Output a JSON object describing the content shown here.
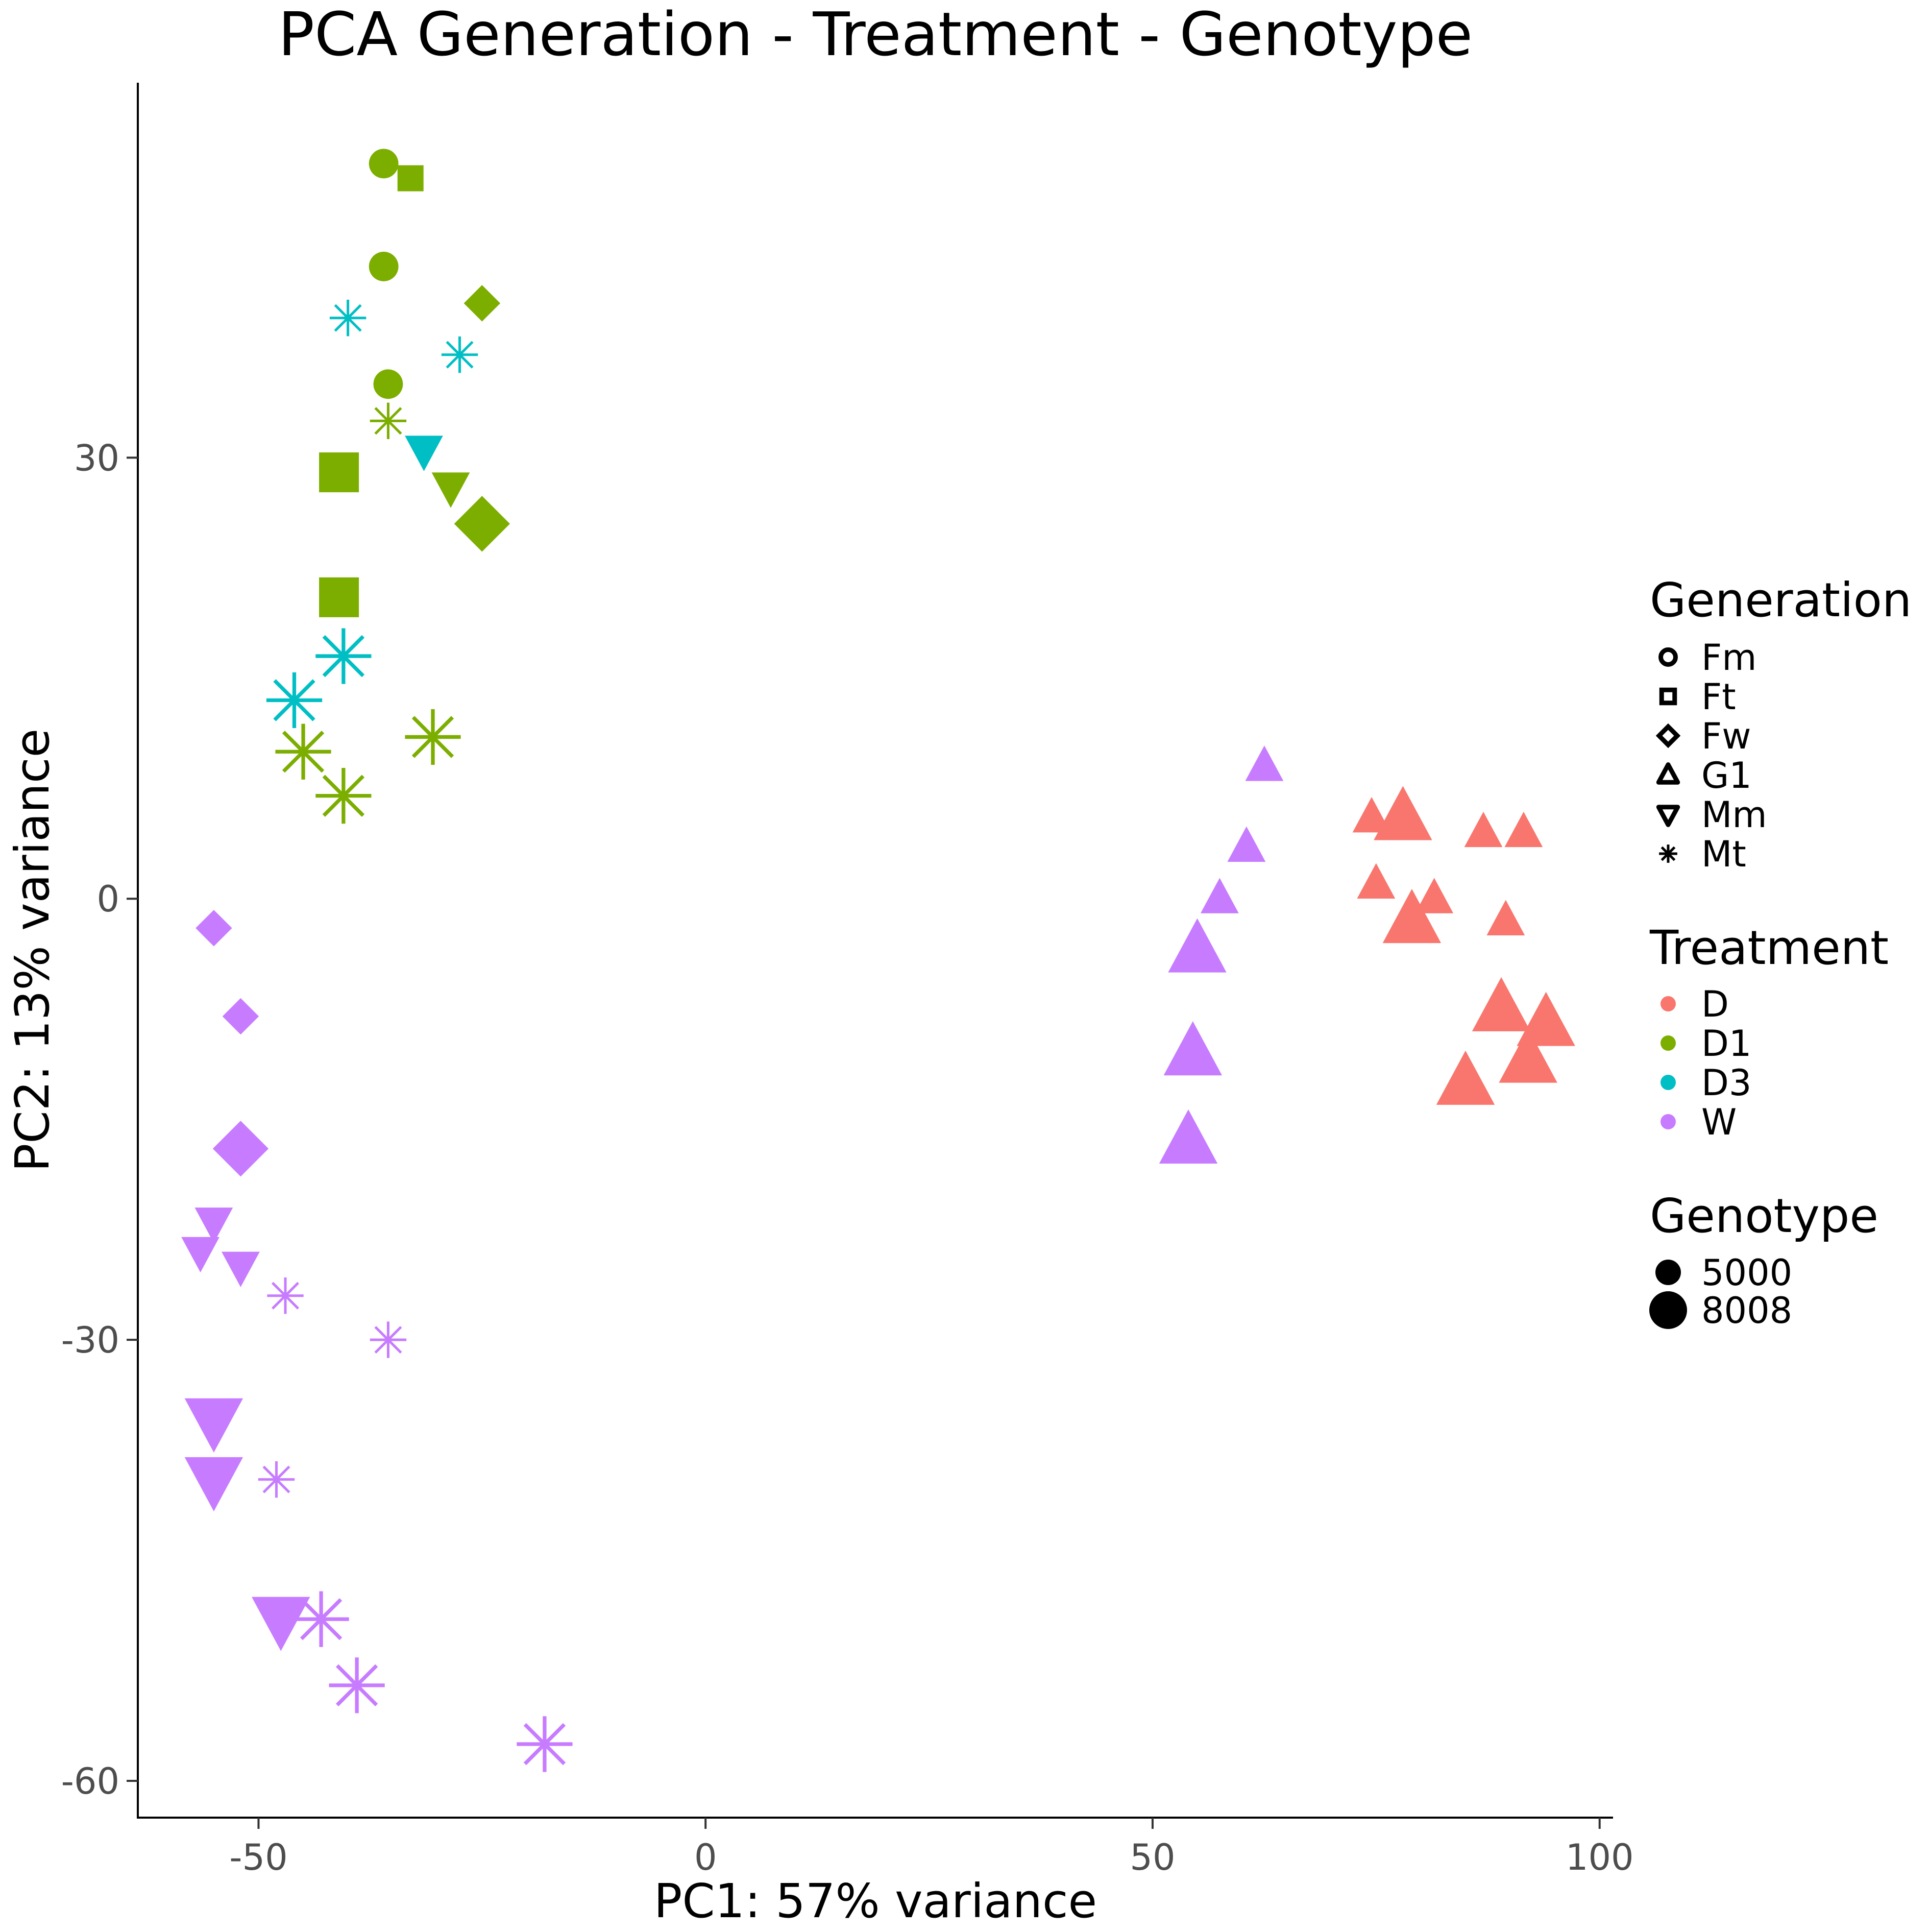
{
  "chart_data": {
    "type": "scatter",
    "title": "PCA Generation - Treatment - Genotype",
    "xlabel": "PC1: 57% variance",
    "ylabel": "PC2: 13% variance",
    "xlim": [
      -63.5,
      101.5
    ],
    "ylim": [
      -62.5,
      55.5
    ],
    "xticks": [
      -50,
      0,
      50,
      100
    ],
    "yticks": [
      30,
      0,
      -30,
      -60
    ],
    "xtick_labels": [
      "-50",
      "0",
      "50",
      "100"
    ],
    "ytick_labels": [
      "30",
      "0",
      "-30",
      "-60"
    ],
    "grid": false,
    "legend_position": "right",
    "treatment_colors": {
      "D": "#F8766D",
      "D1": "#7CAE00",
      "D3": "#00BFC4",
      "W": "#C77CFF"
    },
    "legends": {
      "generation": {
        "title": "Generation",
        "entries": [
          "Fm",
          "Ft",
          "Fw",
          "G1",
          "Mm",
          "Mt"
        ],
        "shapes": [
          "circle",
          "square",
          "diamond",
          "triangle-up",
          "triangle-down",
          "asterisk"
        ]
      },
      "treatment": {
        "title": "Treatment",
        "entries": [
          "D",
          "D1",
          "D3",
          "W"
        ]
      },
      "genotype": {
        "title": "Genotype",
        "entries": [
          "5000",
          "8008"
        ]
      }
    },
    "points": [
      {
        "x": -36.0,
        "y": 50.0,
        "generation": "Fm",
        "treatment": "D1",
        "genotype": "5000"
      },
      {
        "x": -33.0,
        "y": 49.0,
        "generation": "Ft",
        "treatment": "D1",
        "genotype": "5000"
      },
      {
        "x": -36.0,
        "y": 43.0,
        "generation": "Fm",
        "treatment": "D1",
        "genotype": "5000"
      },
      {
        "x": -25.0,
        "y": 40.5,
        "generation": "Fw",
        "treatment": "D1",
        "genotype": "5000"
      },
      {
        "x": -40.0,
        "y": 39.5,
        "generation": "Mt",
        "treatment": "D3",
        "genotype": "5000"
      },
      {
        "x": -27.5,
        "y": 37.0,
        "generation": "Mt",
        "treatment": "D3",
        "genotype": "5000"
      },
      {
        "x": -35.5,
        "y": 35.0,
        "generation": "Fm",
        "treatment": "D1",
        "genotype": "5000"
      },
      {
        "x": -35.5,
        "y": 32.5,
        "generation": "Mt",
        "treatment": "D1",
        "genotype": "5000"
      },
      {
        "x": -31.5,
        "y": 30.5,
        "generation": "Mm",
        "treatment": "D3",
        "genotype": "5000"
      },
      {
        "x": -41.0,
        "y": 29.0,
        "generation": "Ft",
        "treatment": "D1",
        "genotype": "8008"
      },
      {
        "x": -28.5,
        "y": 28.0,
        "generation": "Mm",
        "treatment": "D1",
        "genotype": "5000"
      },
      {
        "x": -25.0,
        "y": 25.5,
        "generation": "Fw",
        "treatment": "D1",
        "genotype": "8008"
      },
      {
        "x": -41.0,
        "y": 20.5,
        "generation": "Ft",
        "treatment": "D1",
        "genotype": "8008"
      },
      {
        "x": -40.5,
        "y": 16.5,
        "generation": "Mt",
        "treatment": "D3",
        "genotype": "8008"
      },
      {
        "x": -46.0,
        "y": 13.5,
        "generation": "Mt",
        "treatment": "D3",
        "genotype": "8008"
      },
      {
        "x": -45.0,
        "y": 10.0,
        "generation": "Mt",
        "treatment": "D1",
        "genotype": "8008"
      },
      {
        "x": -30.5,
        "y": 11.0,
        "generation": "Mt",
        "treatment": "D1",
        "genotype": "8008"
      },
      {
        "x": -40.5,
        "y": 7.0,
        "generation": "Mt",
        "treatment": "D1",
        "genotype": "8008"
      },
      {
        "x": 62.5,
        "y": 9.0,
        "generation": "G1",
        "treatment": "W",
        "genotype": "5000"
      },
      {
        "x": 74.5,
        "y": 5.5,
        "generation": "G1",
        "treatment": "D",
        "genotype": "5000"
      },
      {
        "x": 78.0,
        "y": 5.5,
        "generation": "G1",
        "treatment": "D",
        "genotype": "8008"
      },
      {
        "x": 87.0,
        "y": 4.5,
        "generation": "G1",
        "treatment": "D",
        "genotype": "5000"
      },
      {
        "x": 91.5,
        "y": 4.5,
        "generation": "G1",
        "treatment": "D",
        "genotype": "5000"
      },
      {
        "x": 60.5,
        "y": 3.5,
        "generation": "G1",
        "treatment": "W",
        "genotype": "5000"
      },
      {
        "x": 75.0,
        "y": 1.0,
        "generation": "G1",
        "treatment": "D",
        "genotype": "5000"
      },
      {
        "x": 81.5,
        "y": 0.0,
        "generation": "G1",
        "treatment": "D",
        "genotype": "5000"
      },
      {
        "x": 57.5,
        "y": 0.0,
        "generation": "G1",
        "treatment": "W",
        "genotype": "5000"
      },
      {
        "x": 79.0,
        "y": -1.5,
        "generation": "G1",
        "treatment": "D",
        "genotype": "8008"
      },
      {
        "x": 89.5,
        "y": -1.5,
        "generation": "G1",
        "treatment": "D",
        "genotype": "5000"
      },
      {
        "x": 55.0,
        "y": -3.5,
        "generation": "G1",
        "treatment": "W",
        "genotype": "8008"
      },
      {
        "x": 89.0,
        "y": -7.5,
        "generation": "G1",
        "treatment": "D",
        "genotype": "8008"
      },
      {
        "x": 94.0,
        "y": -8.5,
        "generation": "G1",
        "treatment": "D",
        "genotype": "8008"
      },
      {
        "x": 54.5,
        "y": -10.5,
        "generation": "G1",
        "treatment": "W",
        "genotype": "8008"
      },
      {
        "x": 92.0,
        "y": -11.0,
        "generation": "G1",
        "treatment": "D",
        "genotype": "8008"
      },
      {
        "x": 85.0,
        "y": -12.5,
        "generation": "G1",
        "treatment": "D",
        "genotype": "8008"
      },
      {
        "x": 54.0,
        "y": -16.5,
        "generation": "G1",
        "treatment": "W",
        "genotype": "8008"
      },
      {
        "x": -55.0,
        "y": -2.0,
        "generation": "Fw",
        "treatment": "W",
        "genotype": "5000"
      },
      {
        "x": -52.0,
        "y": -8.0,
        "generation": "Fw",
        "treatment": "W",
        "genotype": "5000"
      },
      {
        "x": -52.0,
        "y": -17.0,
        "generation": "Fw",
        "treatment": "W",
        "genotype": "8008"
      },
      {
        "x": -55.0,
        "y": -22.0,
        "generation": "Mm",
        "treatment": "W",
        "genotype": "5000"
      },
      {
        "x": -56.5,
        "y": -24.0,
        "generation": "Mm",
        "treatment": "W",
        "genotype": "5000"
      },
      {
        "x": -52.0,
        "y": -25.0,
        "generation": "Mm",
        "treatment": "W",
        "genotype": "5000"
      },
      {
        "x": -47.0,
        "y": -27.0,
        "generation": "Mt",
        "treatment": "W",
        "genotype": "5000"
      },
      {
        "x": -35.5,
        "y": -30.0,
        "generation": "Mt",
        "treatment": "W",
        "genotype": "5000"
      },
      {
        "x": -55.0,
        "y": -35.5,
        "generation": "Mm",
        "treatment": "W",
        "genotype": "8008"
      },
      {
        "x": -55.0,
        "y": -39.5,
        "generation": "Mm",
        "treatment": "W",
        "genotype": "8008"
      },
      {
        "x": -48.0,
        "y": -39.5,
        "generation": "Mt",
        "treatment": "W",
        "genotype": "5000"
      },
      {
        "x": -47.5,
        "y": -49.0,
        "generation": "Mm",
        "treatment": "W",
        "genotype": "8008"
      },
      {
        "x": -43.0,
        "y": -49.0,
        "generation": "Mt",
        "treatment": "W",
        "genotype": "8008"
      },
      {
        "x": -39.0,
        "y": -53.5,
        "generation": "Mt",
        "treatment": "W",
        "genotype": "8008"
      },
      {
        "x": -18.0,
        "y": -57.5,
        "generation": "Mt",
        "treatment": "W",
        "genotype": "8008"
      }
    ]
  }
}
